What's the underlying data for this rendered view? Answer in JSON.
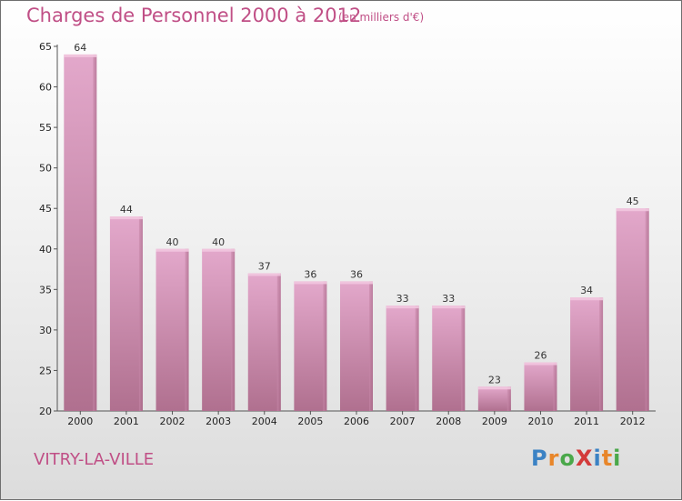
{
  "chart_data": {
    "type": "bar",
    "title": "Charges de Personnel 2000 à 2012",
    "subtitle": "(en milliers d'€)",
    "categories": [
      "2000",
      "2001",
      "2002",
      "2003",
      "2004",
      "2005",
      "2006",
      "2007",
      "2008",
      "2009",
      "2010",
      "2011",
      "2012"
    ],
    "values": [
      64,
      44,
      40,
      40,
      37,
      36,
      36,
      33,
      33,
      23,
      26,
      34,
      45
    ],
    "ylim": [
      20,
      65
    ],
    "yticks": [
      20,
      25,
      30,
      35,
      40,
      45,
      50,
      55,
      60,
      65
    ],
    "grid": false,
    "bar_color": "#d993ba"
  },
  "footer": {
    "city": "VITRY-LA-VILLE",
    "logo_letters": [
      {
        "ch": "P",
        "color": "#3b82c4"
      },
      {
        "ch": "r",
        "color": "#e8862a"
      },
      {
        "ch": "o",
        "color": "#4aa84a"
      },
      {
        "ch": "X",
        "color": "#d33a3a"
      },
      {
        "ch": "i",
        "color": "#3b82c4"
      },
      {
        "ch": "t",
        "color": "#e8862a"
      },
      {
        "ch": "i",
        "color": "#4aa84a"
      }
    ]
  }
}
